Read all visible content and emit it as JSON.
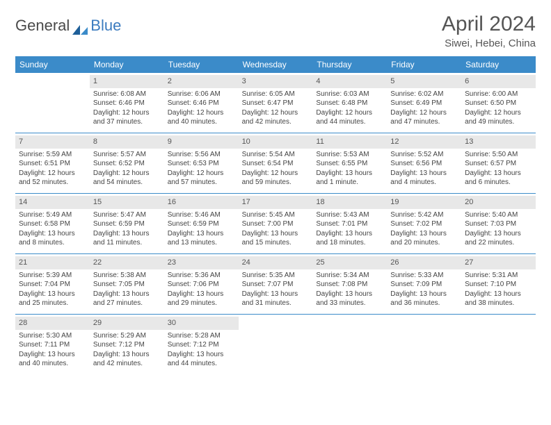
{
  "logo": {
    "text1": "General",
    "text2": "Blue"
  },
  "title": "April 2024",
  "location": "Siwei, Hebei, China",
  "colors": {
    "header_bg": "#3b8bc9",
    "header_text": "#ffffff",
    "daynum_bg": "#e8e8e8",
    "text": "#444444",
    "border": "#3b8bc9",
    "logo_accent": "#3b7bbf"
  },
  "day_names": [
    "Sunday",
    "Monday",
    "Tuesday",
    "Wednesday",
    "Thursday",
    "Friday",
    "Saturday"
  ],
  "weeks": [
    [
      {
        "n": "",
        "sr": "",
        "ss": "",
        "dl": ""
      },
      {
        "n": "1",
        "sr": "Sunrise: 6:08 AM",
        "ss": "Sunset: 6:46 PM",
        "dl": "Daylight: 12 hours and 37 minutes."
      },
      {
        "n": "2",
        "sr": "Sunrise: 6:06 AM",
        "ss": "Sunset: 6:46 PM",
        "dl": "Daylight: 12 hours and 40 minutes."
      },
      {
        "n": "3",
        "sr": "Sunrise: 6:05 AM",
        "ss": "Sunset: 6:47 PM",
        "dl": "Daylight: 12 hours and 42 minutes."
      },
      {
        "n": "4",
        "sr": "Sunrise: 6:03 AM",
        "ss": "Sunset: 6:48 PM",
        "dl": "Daylight: 12 hours and 44 minutes."
      },
      {
        "n": "5",
        "sr": "Sunrise: 6:02 AM",
        "ss": "Sunset: 6:49 PM",
        "dl": "Daylight: 12 hours and 47 minutes."
      },
      {
        "n": "6",
        "sr": "Sunrise: 6:00 AM",
        "ss": "Sunset: 6:50 PM",
        "dl": "Daylight: 12 hours and 49 minutes."
      }
    ],
    [
      {
        "n": "7",
        "sr": "Sunrise: 5:59 AM",
        "ss": "Sunset: 6:51 PM",
        "dl": "Daylight: 12 hours and 52 minutes."
      },
      {
        "n": "8",
        "sr": "Sunrise: 5:57 AM",
        "ss": "Sunset: 6:52 PM",
        "dl": "Daylight: 12 hours and 54 minutes."
      },
      {
        "n": "9",
        "sr": "Sunrise: 5:56 AM",
        "ss": "Sunset: 6:53 PM",
        "dl": "Daylight: 12 hours and 57 minutes."
      },
      {
        "n": "10",
        "sr": "Sunrise: 5:54 AM",
        "ss": "Sunset: 6:54 PM",
        "dl": "Daylight: 12 hours and 59 minutes."
      },
      {
        "n": "11",
        "sr": "Sunrise: 5:53 AM",
        "ss": "Sunset: 6:55 PM",
        "dl": "Daylight: 13 hours and 1 minute."
      },
      {
        "n": "12",
        "sr": "Sunrise: 5:52 AM",
        "ss": "Sunset: 6:56 PM",
        "dl": "Daylight: 13 hours and 4 minutes."
      },
      {
        "n": "13",
        "sr": "Sunrise: 5:50 AM",
        "ss": "Sunset: 6:57 PM",
        "dl": "Daylight: 13 hours and 6 minutes."
      }
    ],
    [
      {
        "n": "14",
        "sr": "Sunrise: 5:49 AM",
        "ss": "Sunset: 6:58 PM",
        "dl": "Daylight: 13 hours and 8 minutes."
      },
      {
        "n": "15",
        "sr": "Sunrise: 5:47 AM",
        "ss": "Sunset: 6:59 PM",
        "dl": "Daylight: 13 hours and 11 minutes."
      },
      {
        "n": "16",
        "sr": "Sunrise: 5:46 AM",
        "ss": "Sunset: 6:59 PM",
        "dl": "Daylight: 13 hours and 13 minutes."
      },
      {
        "n": "17",
        "sr": "Sunrise: 5:45 AM",
        "ss": "Sunset: 7:00 PM",
        "dl": "Daylight: 13 hours and 15 minutes."
      },
      {
        "n": "18",
        "sr": "Sunrise: 5:43 AM",
        "ss": "Sunset: 7:01 PM",
        "dl": "Daylight: 13 hours and 18 minutes."
      },
      {
        "n": "19",
        "sr": "Sunrise: 5:42 AM",
        "ss": "Sunset: 7:02 PM",
        "dl": "Daylight: 13 hours and 20 minutes."
      },
      {
        "n": "20",
        "sr": "Sunrise: 5:40 AM",
        "ss": "Sunset: 7:03 PM",
        "dl": "Daylight: 13 hours and 22 minutes."
      }
    ],
    [
      {
        "n": "21",
        "sr": "Sunrise: 5:39 AM",
        "ss": "Sunset: 7:04 PM",
        "dl": "Daylight: 13 hours and 25 minutes."
      },
      {
        "n": "22",
        "sr": "Sunrise: 5:38 AM",
        "ss": "Sunset: 7:05 PM",
        "dl": "Daylight: 13 hours and 27 minutes."
      },
      {
        "n": "23",
        "sr": "Sunrise: 5:36 AM",
        "ss": "Sunset: 7:06 PM",
        "dl": "Daylight: 13 hours and 29 minutes."
      },
      {
        "n": "24",
        "sr": "Sunrise: 5:35 AM",
        "ss": "Sunset: 7:07 PM",
        "dl": "Daylight: 13 hours and 31 minutes."
      },
      {
        "n": "25",
        "sr": "Sunrise: 5:34 AM",
        "ss": "Sunset: 7:08 PM",
        "dl": "Daylight: 13 hours and 33 minutes."
      },
      {
        "n": "26",
        "sr": "Sunrise: 5:33 AM",
        "ss": "Sunset: 7:09 PM",
        "dl": "Daylight: 13 hours and 36 minutes."
      },
      {
        "n": "27",
        "sr": "Sunrise: 5:31 AM",
        "ss": "Sunset: 7:10 PM",
        "dl": "Daylight: 13 hours and 38 minutes."
      }
    ],
    [
      {
        "n": "28",
        "sr": "Sunrise: 5:30 AM",
        "ss": "Sunset: 7:11 PM",
        "dl": "Daylight: 13 hours and 40 minutes."
      },
      {
        "n": "29",
        "sr": "Sunrise: 5:29 AM",
        "ss": "Sunset: 7:12 PM",
        "dl": "Daylight: 13 hours and 42 minutes."
      },
      {
        "n": "30",
        "sr": "Sunrise: 5:28 AM",
        "ss": "Sunset: 7:12 PM",
        "dl": "Daylight: 13 hours and 44 minutes."
      },
      {
        "n": "",
        "sr": "",
        "ss": "",
        "dl": ""
      },
      {
        "n": "",
        "sr": "",
        "ss": "",
        "dl": ""
      },
      {
        "n": "",
        "sr": "",
        "ss": "",
        "dl": ""
      },
      {
        "n": "",
        "sr": "",
        "ss": "",
        "dl": ""
      }
    ]
  ]
}
